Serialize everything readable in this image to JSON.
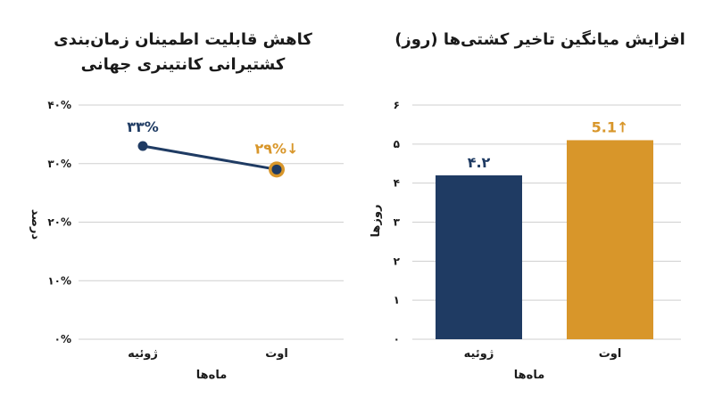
{
  "colors": {
    "navy": "#1f3b63",
    "gold": "#d8962a",
    "grid": "#cfcfcf"
  },
  "chart_data": [
    {
      "type": "line",
      "title": [
        "کاهش قابلیت اطمینان زمان‌بندی",
        "کشتیرانی کانتینری جهانی"
      ],
      "xlabel": "ماه‌ها",
      "ylabel": "درصد",
      "categories": [
        "ژوئیه",
        "اوت"
      ],
      "values": [
        33,
        29
      ],
      "data_labels": [
        "۳۳%",
        "۲۹%↓"
      ],
      "ylim": [
        0,
        40
      ],
      "yticks": [
        0,
        10,
        20,
        30,
        40
      ],
      "ytick_labels": [
        "۰%",
        "۱۰%",
        "۲۰%",
        "۳۰%",
        "۴۰%"
      ],
      "grid": true
    },
    {
      "type": "bar",
      "title": [
        "افزایش میانگین تاخیر کشتی‌ها (روز)"
      ],
      "xlabel": "ماه‌ها",
      "ylabel": "روزها",
      "categories": [
        "ژوئیه",
        "اوت"
      ],
      "values": [
        4.2,
        5.1
      ],
      "data_labels": [
        "۴.۲",
        "5.1↑"
      ],
      "ylim": [
        0,
        6
      ],
      "yticks": [
        0,
        1,
        2,
        3,
        4,
        5,
        6
      ],
      "ytick_labels": [
        "۰",
        "۱",
        "۲",
        "۳",
        "۴",
        "۵",
        "۶"
      ],
      "grid": true
    }
  ]
}
